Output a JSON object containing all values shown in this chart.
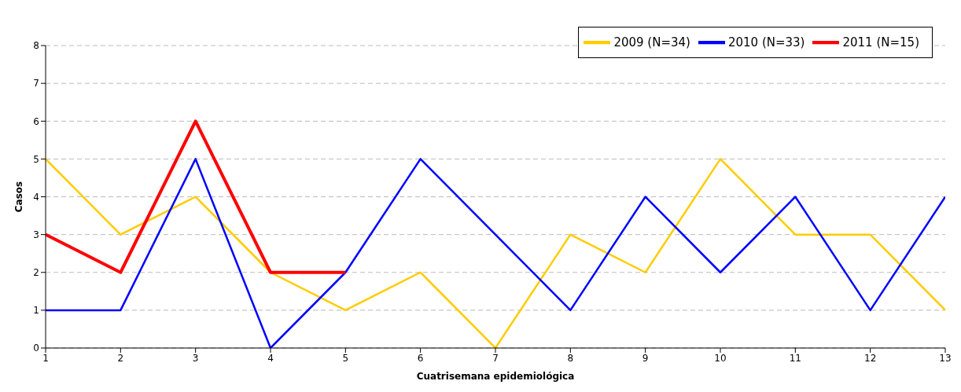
{
  "chart_data": {
    "type": "line",
    "xlabel": "Cuatrisemana epidemiológica",
    "ylabel": "Casos",
    "x": [
      1,
      2,
      3,
      4,
      5,
      6,
      7,
      8,
      9,
      10,
      11,
      12,
      13
    ],
    "series": [
      {
        "name": "2009 (N=34)",
        "color": "#ffcc00",
        "values": [
          5,
          3,
          4,
          2,
          1,
          2,
          0,
          3,
          2,
          5,
          3,
          3,
          1
        ]
      },
      {
        "name": "2010 (N=33)",
        "color": "#0000ff",
        "values": [
          1,
          1,
          5,
          0,
          2,
          5,
          3,
          1,
          4,
          2,
          4,
          1,
          4
        ]
      },
      {
        "name": "2011 (N=15)",
        "color": "#ff0000",
        "values": [
          3,
          2,
          6,
          2,
          2,
          null,
          null,
          null,
          null,
          null,
          null,
          null,
          null
        ]
      }
    ],
    "xlim": [
      1,
      13
    ],
    "xticks": [
      1,
      2,
      3,
      4,
      5,
      6,
      7,
      8,
      9,
      10,
      11,
      12,
      13
    ],
    "ylim": [
      0,
      8
    ],
    "yticks": [
      0,
      1,
      2,
      3,
      4,
      5,
      6,
      7,
      8
    ],
    "grid": "y",
    "legend": "top right",
    "marker": "none",
    "line_style": "solid"
  }
}
